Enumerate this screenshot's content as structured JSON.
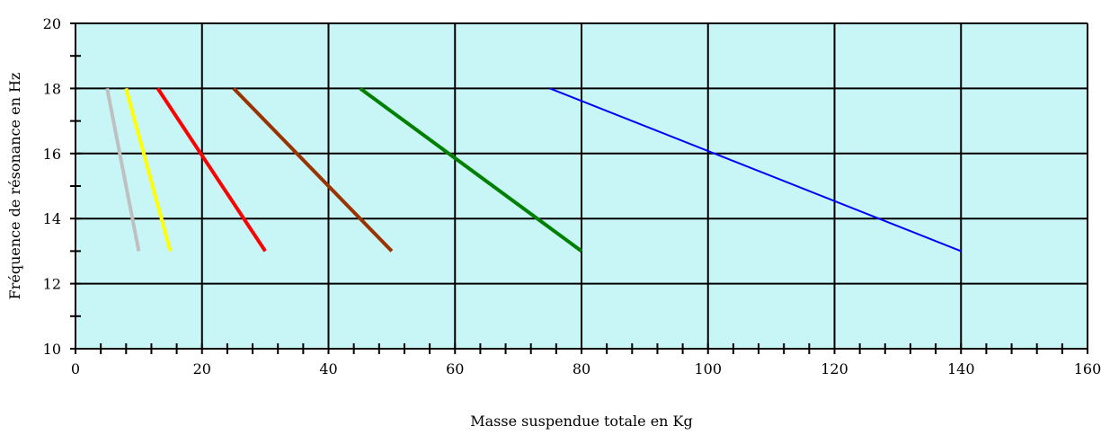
{
  "chart_data": {
    "type": "line",
    "title": "",
    "xlabel": "Masse suspendue totale en Kg",
    "ylabel": "Fréquence de résonance en Hz",
    "xlim": [
      0,
      160
    ],
    "ylim": [
      10,
      20
    ],
    "x_major_ticks": [
      0,
      20,
      40,
      60,
      80,
      100,
      120,
      140,
      160
    ],
    "y_major_ticks": [
      10,
      12,
      14,
      16,
      18,
      20
    ],
    "x_minor_step": 4,
    "y_minor_step": 1,
    "grid": true,
    "plot_background": "#c8f5f5",
    "legend": "none",
    "series": [
      {
        "color": "#c0c0c0",
        "x": [
          5,
          10
        ],
        "y": [
          18,
          13
        ]
      },
      {
        "color": "#ffff00",
        "x": [
          8,
          15
        ],
        "y": [
          18,
          13
        ]
      },
      {
        "color": "#ff0000",
        "x": [
          13,
          30
        ],
        "y": [
          18,
          13
        ]
      },
      {
        "color": "#993300",
        "x": [
          25,
          50
        ],
        "y": [
          18,
          13
        ]
      },
      {
        "color": "#008000",
        "x": [
          45,
          80
        ],
        "y": [
          18,
          13
        ]
      },
      {
        "color": "#0000ff",
        "x": [
          75,
          140
        ],
        "y": [
          18,
          13
        ]
      }
    ]
  }
}
